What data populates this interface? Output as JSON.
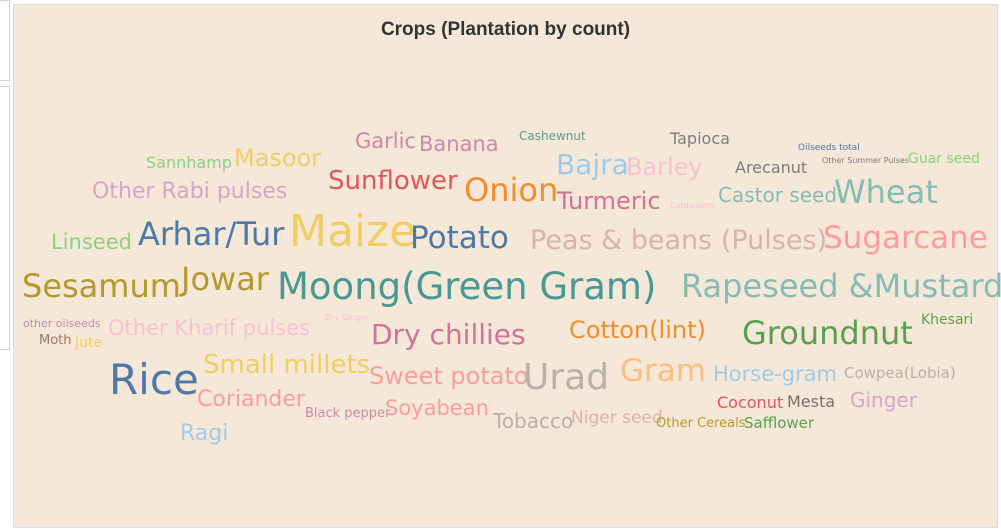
{
  "title": "Crops (Plantation by count)",
  "chart_data": {
    "type": "wordcloud",
    "title": "Crops (Plantation by count)",
    "words": [
      {
        "text": "Garlic",
        "weight": 4,
        "color": "#c98aa8"
      },
      {
        "text": "Banana",
        "weight": 4,
        "color": "#c98aa8"
      },
      {
        "text": "Cashewnut",
        "weight": 2,
        "color": "#5b9e8f"
      },
      {
        "text": "Tapioca",
        "weight": 3,
        "color": "#7c7c7c"
      },
      {
        "text": "Oilseeds total",
        "weight": 1,
        "color": "#4e79a7"
      },
      {
        "text": "Other Summer Pulses",
        "weight": 1,
        "color": "#7c7c7c"
      },
      {
        "text": "Guar seed",
        "weight": 3,
        "color": "#8cd17d"
      },
      {
        "text": "Sannhamp",
        "weight": 3,
        "color": "#8cd17d"
      },
      {
        "text": "Masoor",
        "weight": 5,
        "color": "#f1ce63"
      },
      {
        "text": "Bajra",
        "weight": 6,
        "color": "#a0cbe8"
      },
      {
        "text": "Barley",
        "weight": 5,
        "color": "#fabfd2"
      },
      {
        "text": "Arecanut",
        "weight": 3,
        "color": "#7c7c7c"
      },
      {
        "text": "Other Rabi pulses",
        "weight": 5,
        "color": "#d4a6c8"
      },
      {
        "text": "Sunflower",
        "weight": 6,
        "color": "#e15759"
      },
      {
        "text": "Onion",
        "weight": 7,
        "color": "#f28e2b"
      },
      {
        "text": "Turmeric",
        "weight": 5,
        "color": "#d37295"
      },
      {
        "text": "Cardamom",
        "weight": 1,
        "color": "#fabfd2"
      },
      {
        "text": "Castor seed",
        "weight": 5,
        "color": "#86bcb6"
      },
      {
        "text": "Wheat",
        "weight": 7,
        "color": "#86bcb6"
      },
      {
        "text": "Linseed",
        "weight": 5,
        "color": "#8cd17d"
      },
      {
        "text": "Arhar/Tur",
        "weight": 8,
        "color": "#4e79a7"
      },
      {
        "text": "Maize",
        "weight": 9,
        "color": "#f1ce63"
      },
      {
        "text": "Potato",
        "weight": 7,
        "color": "#4e79a7"
      },
      {
        "text": "Peas & beans (Pulses)",
        "weight": 6,
        "color": "#d7b5a6"
      },
      {
        "text": "Sugarcane",
        "weight": 7,
        "color": "#ff9d9a"
      },
      {
        "text": "Sesamum",
        "weight": 7,
        "color": "#b6992d"
      },
      {
        "text": "Jowar",
        "weight": 7,
        "color": "#b6992d"
      },
      {
        "text": "Moong(Green Gram)",
        "weight": 9,
        "color": "#499894"
      },
      {
        "text": "Rapeseed &Mustard",
        "weight": 8,
        "color": "#86bcb6"
      },
      {
        "text": "other oilseeds",
        "weight": 2,
        "color": "#c98aa8"
      },
      {
        "text": "Moth",
        "weight": 2,
        "color": "#9d7660"
      },
      {
        "text": "Jute",
        "weight": 2,
        "color": "#f1ce63"
      },
      {
        "text": "Other Kharif pulses",
        "weight": 5,
        "color": "#fabfd2"
      },
      {
        "text": "Dry Ginger",
        "weight": 1,
        "color": "#fabfd2"
      },
      {
        "text": "Dry chillies",
        "weight": 6,
        "color": "#d37295"
      },
      {
        "text": "Cotton(lint)",
        "weight": 6,
        "color": "#f28e2b"
      },
      {
        "text": "Groundnut",
        "weight": 8,
        "color": "#59a14f"
      },
      {
        "text": "Khesari",
        "weight": 3,
        "color": "#59a14f"
      },
      {
        "text": "Rice",
        "weight": 9,
        "color": "#4e79a7"
      },
      {
        "text": "Small millets",
        "weight": 6,
        "color": "#f1ce63"
      },
      {
        "text": "Sweet potato",
        "weight": 6,
        "color": "#ff9d9a"
      },
      {
        "text": "Urad",
        "weight": 8,
        "color": "#bab0ac"
      },
      {
        "text": "Gram",
        "weight": 7,
        "color": "#ffbe7d"
      },
      {
        "text": "Horse-gram",
        "weight": 5,
        "color": "#a0cbe8"
      },
      {
        "text": "Cowpea(Lobia)",
        "weight": 3,
        "color": "#bab0ac"
      },
      {
        "text": "Coriander",
        "weight": 5,
        "color": "#ff9d9a"
      },
      {
        "text": "Black pepper",
        "weight": 3,
        "color": "#c98aa8"
      },
      {
        "text": "Soyabean",
        "weight": 5,
        "color": "#ff9d9a"
      },
      {
        "text": "Tobacco",
        "weight": 5,
        "color": "#bab0ac"
      },
      {
        "text": "Niger seed",
        "weight": 4,
        "color": "#d7b5a6"
      },
      {
        "text": "Other Cereals",
        "weight": 3,
        "color": "#b6992d"
      },
      {
        "text": "Safflower",
        "weight": 3,
        "color": "#59a14f"
      },
      {
        "text": "Coconut",
        "weight": 3,
        "color": "#e15759"
      },
      {
        "text": "Mesta",
        "weight": 3,
        "color": "#79706e"
      },
      {
        "text": "Ginger",
        "weight": 4,
        "color": "#d4a6c8"
      },
      {
        "text": "Ragi",
        "weight": 5,
        "color": "#a0cbe8"
      }
    ]
  }
}
